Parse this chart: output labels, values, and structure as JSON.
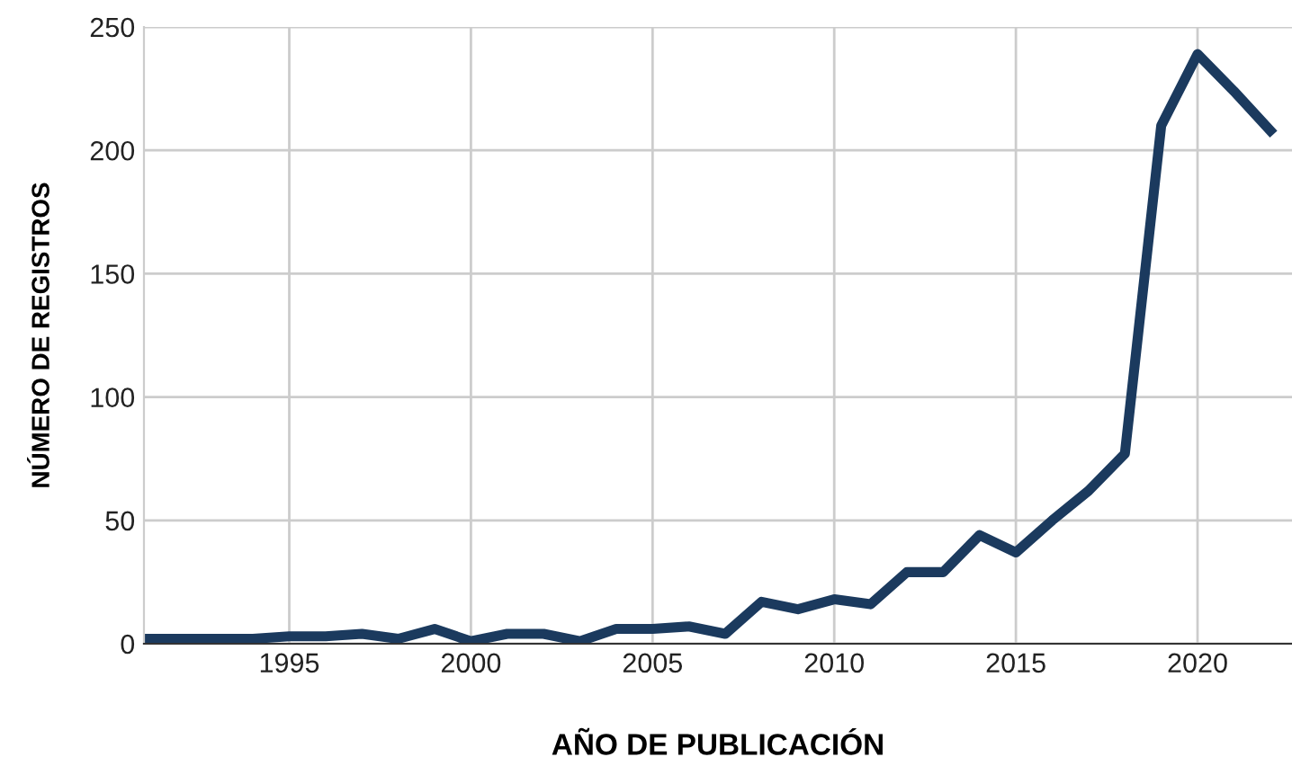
{
  "chart_data": {
    "type": "line",
    "xlabel": "AÑO DE PUBLICACIÓN",
    "ylabel": "NÚMERO DE REGISTROS",
    "x": [
      1991,
      1992,
      1993,
      1994,
      1995,
      1996,
      1997,
      1998,
      1999,
      2000,
      2001,
      2002,
      2003,
      2004,
      2005,
      2006,
      2007,
      2008,
      2009,
      2010,
      2011,
      2012,
      2013,
      2014,
      2015,
      2016,
      2017,
      2018,
      2019,
      2020,
      2021,
      2022
    ],
    "series": [
      {
        "color": "#1b3a5e",
        "values": [
          2,
          2,
          2,
          2,
          3,
          3,
          4,
          2,
          6,
          1,
          4,
          4,
          1,
          6,
          6,
          7,
          4,
          17,
          14,
          18,
          16,
          29,
          29,
          44,
          37,
          50,
          62,
          77,
          210,
          239,
          224,
          208
        ]
      }
    ],
    "xlim": [
      1991,
      2022.6
    ],
    "xticks": [
      1995,
      2000,
      2005,
      2010,
      2015,
      2020
    ],
    "ylim": [
      0,
      250
    ],
    "yticks": [
      0,
      50,
      100,
      150,
      200,
      250
    ],
    "grid": true,
    "legend": false,
    "marker": "none",
    "line_style": "solid"
  }
}
